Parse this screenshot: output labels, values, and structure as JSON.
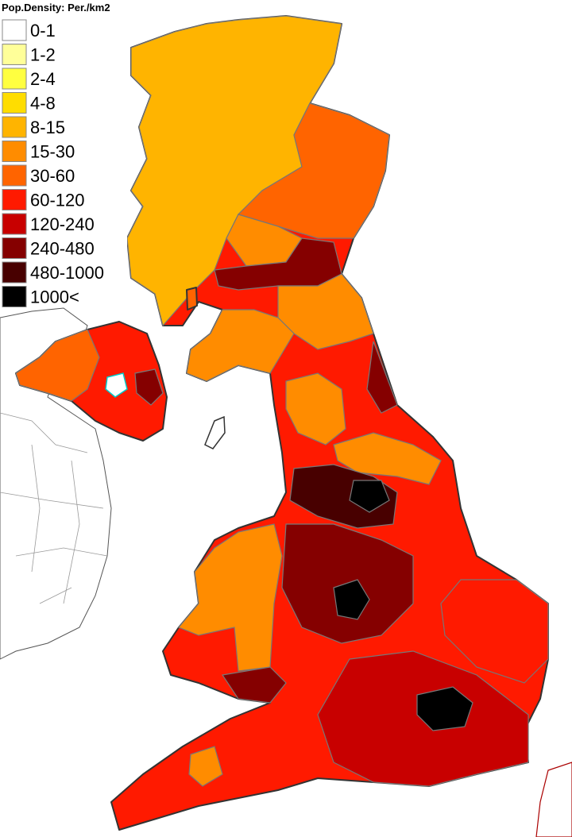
{
  "legend": {
    "title": "Pop.Density: Per./km2",
    "items": [
      {
        "label": "0-1",
        "color": "#ffffff"
      },
      {
        "label": "1-2",
        "color": "#ffff99"
      },
      {
        "label": "2-4",
        "color": "#ffff40"
      },
      {
        "label": "4-8",
        "color": "#ffdd00"
      },
      {
        "label": "8-15",
        "color": "#ffb400"
      },
      {
        "label": "15-30",
        "color": "#ff8c00"
      },
      {
        "label": "30-60",
        "color": "#ff6400"
      },
      {
        "label": "60-120",
        "color": "#ff1a00"
      },
      {
        "label": "120-240",
        "color": "#c80000"
      },
      {
        "label": "240-480",
        "color": "#850000"
      },
      {
        "label": "480-1000",
        "color": "#480000"
      },
      {
        "label": "1000<",
        "color": "#000000"
      }
    ]
  }
}
